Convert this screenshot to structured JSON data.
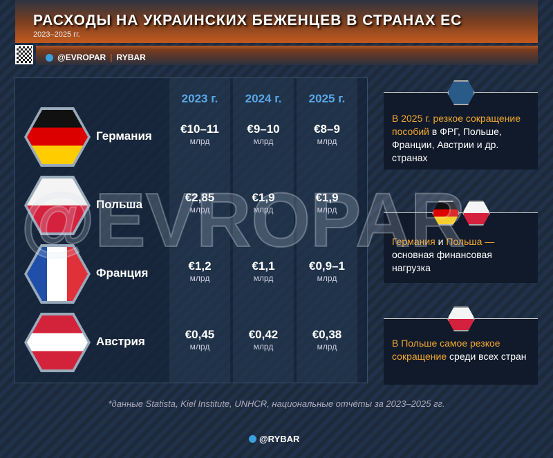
{
  "header": {
    "title": "РАСХОДЫ НА УКРАИНСКИХ БЕЖЕНЦЕВ В СТРАНАХ ЕС",
    "subtitle": "2023–2025 гг."
  },
  "brand": {
    "channel": "@EVROPAR",
    "partner": "RYBAR"
  },
  "watermark": "@EVROPAR",
  "table": {
    "years": [
      "2023 г.",
      "2024 г.",
      "2025 г."
    ],
    "unit": "млрд",
    "rows": [
      {
        "country": "Германия",
        "values": [
          "€10–11",
          "€9–10",
          "€8–9"
        ]
      },
      {
        "country": "Польша",
        "values": [
          "€2,85",
          "€1,9",
          "€1,9"
        ]
      },
      {
        "country": "Франция",
        "values": [
          "€1,2",
          "€1,1",
          "€0,9–1"
        ]
      },
      {
        "country": "Австрия",
        "values": [
          "€0,45",
          "€0,42",
          "€0,38"
        ]
      }
    ]
  },
  "cards": [
    {
      "highlight": "В 2025 г. резкое сокращение пособий",
      "text": " в ФРГ, Польше, Франции, Австрии и др. странах"
    },
    {
      "hl1": "Германия",
      "mid": " и ",
      "hl2": "Польша —",
      "text": " основная финансовая нагрузка"
    },
    {
      "highlight": "В Польше самое резкое сокращение",
      "text": " среди всех стран"
    }
  ],
  "footnote": "*данные Statista, Kiel Institute, UNHCR, национальные отчёты за 2023–2025 гг.",
  "footer": "@RYBAR",
  "colors": {
    "accent": "#f0a830",
    "year": "#5aa8e8",
    "header": "#c35a1f"
  }
}
